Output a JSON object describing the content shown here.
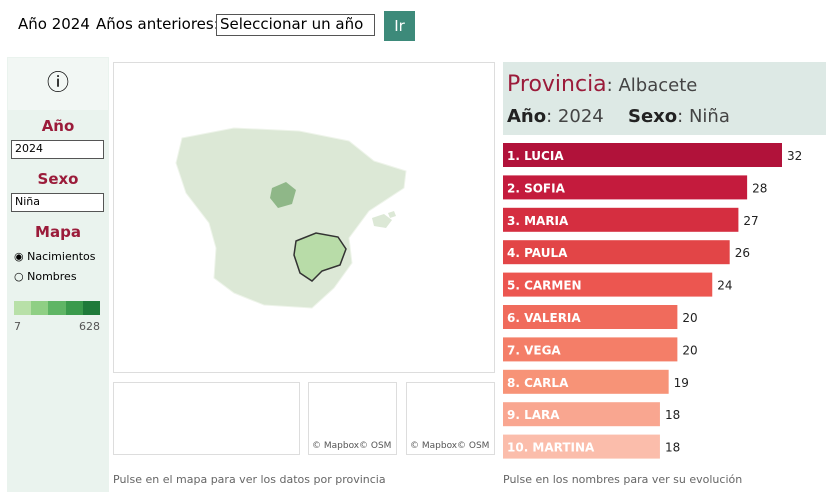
{
  "header": {
    "year_label": "Año 2024",
    "previous_label": "Años anteriores:",
    "select_placeholder": "Seleccionar un año",
    "go_button": "Ir"
  },
  "sidebar": {
    "year_title": "Año",
    "year_value": "2024",
    "sex_title": "Sexo",
    "sex_value": "Niña",
    "map_title": "Mapa",
    "options": [
      "Nacimientos",
      "Nombres"
    ],
    "legend_min": 7,
    "legend_max": 628
  },
  "map": {
    "attributions": [
      "© Mapbox",
      "© OSM",
      "© Mapbox",
      "© OSM"
    ],
    "hint": "Pulse en el mapa para ver los datos por provincia"
  },
  "panel": {
    "province_label": "Provincia",
    "province": ": Albacete",
    "year_label": "Año",
    "year": ": 2024",
    "sex_label": "Sexo",
    "sex": ": Niña",
    "hint": "Pulse en los nombres para ver su evolución"
  },
  "chart_data": {
    "type": "bar",
    "categories": [
      "1. LUCIA",
      "2. SOFIA",
      "3. MARIA",
      "4. PAULA",
      "5. CARMEN",
      "6. VALERIA",
      "7. VEGA",
      "8. CARLA",
      "9. LARA",
      "10. MARTINA"
    ],
    "values": [
      32,
      28,
      27,
      26,
      24,
      20,
      20,
      19,
      18,
      18
    ],
    "colors": [
      "#b1123a",
      "#c41b3d",
      "#d52e40",
      "#e24547",
      "#ec5650",
      "#f06b5c",
      "#f47e68",
      "#f79377",
      "#f9a690",
      "#fbbdab"
    ]
  }
}
